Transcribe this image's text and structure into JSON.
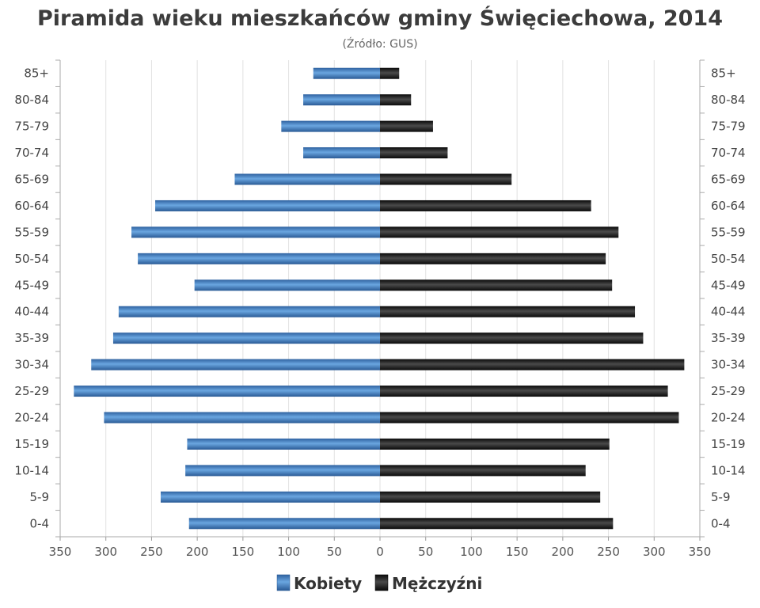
{
  "chart_data": {
    "type": "bar",
    "orientation": "horizontal",
    "subtype": "population-pyramid",
    "title": "Piramida wieku mieszkańców gminy Święciechowa, 2014",
    "subtitle": "(Źródło: GUS)",
    "categories": [
      "85+",
      "80-84",
      "75-79",
      "70-74",
      "65-69",
      "60-64",
      "55-59",
      "50-54",
      "45-49",
      "40-44",
      "35-39",
      "30-34",
      "25-29",
      "20-24",
      "15-19",
      "10-14",
      "5-9",
      "0-4"
    ],
    "series": [
      {
        "name": "Kobiety",
        "side": "left",
        "color": "#3f78b6",
        "values": [
          73,
          84,
          108,
          84,
          159,
          246,
          272,
          265,
          203,
          286,
          292,
          316,
          335,
          302,
          211,
          213,
          240,
          209
        ]
      },
      {
        "name": "Mężczyźni",
        "side": "right",
        "color": "#1c1c1c",
        "values": [
          21,
          34,
          58,
          74,
          144,
          231,
          261,
          247,
          254,
          279,
          288,
          333,
          315,
          327,
          251,
          225,
          241,
          255
        ]
      }
    ],
    "xlim": [
      -350,
      350
    ],
    "x_ticks": [
      "350",
      "300",
      "250",
      "200",
      "150",
      "100",
      "50",
      "0",
      "50",
      "100",
      "150",
      "200",
      "250",
      "300",
      "350"
    ],
    "grid": true,
    "legend_position": "bottom-center"
  }
}
